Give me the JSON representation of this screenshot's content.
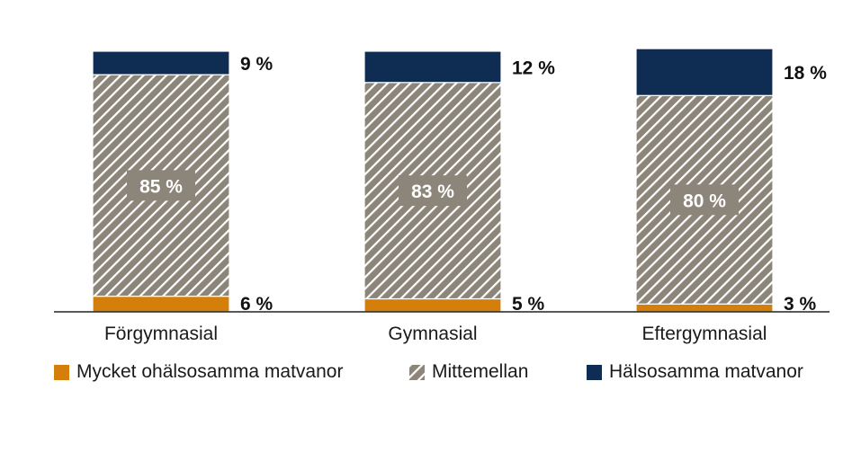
{
  "chart_data": {
    "type": "bar",
    "stacked": true,
    "percent_stacked": true,
    "categories": [
      "Förgymnasial",
      "Gymnasial",
      "Eftergymnasial"
    ],
    "series": [
      {
        "name": "Mycket ohälsosamma matvanor",
        "values": [
          6,
          5,
          3
        ],
        "labels": [
          "6 %",
          "5 %",
          "3 %"
        ],
        "color": "#d47f0c",
        "pattern": "solid"
      },
      {
        "name": "Mittemellan",
        "values": [
          85,
          83,
          80
        ],
        "labels": [
          "85 %",
          "83 %",
          "80 %"
        ],
        "color": "#8c8579",
        "pattern": "diagonal-hatch"
      },
      {
        "name": "Hälsosamma matvanor",
        "values": [
          9,
          12,
          18
        ],
        "labels": [
          "9 %",
          "12 %",
          "18 %"
        ],
        "color": "#0f2d52",
        "pattern": "solid"
      }
    ],
    "ylim": [
      0,
      100
    ],
    "grid": false,
    "legend_position": "bottom"
  }
}
